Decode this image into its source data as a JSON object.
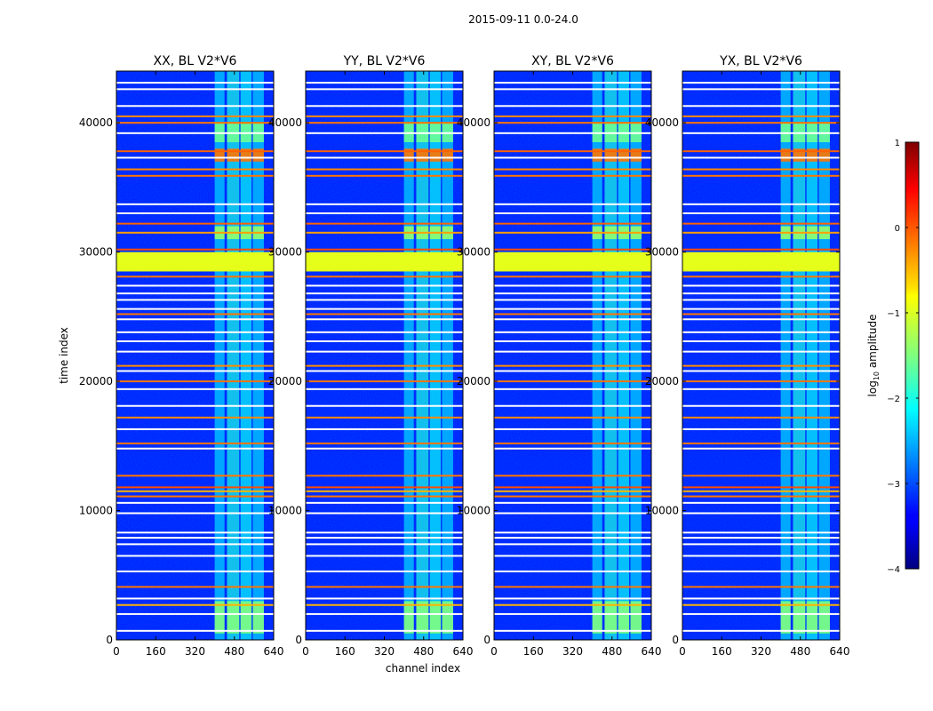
{
  "figure": {
    "suptitle": "2015-09-11 0.0-24.0",
    "xlabel": "channel index",
    "ylabel": "time index"
  },
  "chart_data": {
    "type": "heatmap",
    "colormap": "jet",
    "panels": [
      {
        "title": "XX, BL V2*V6",
        "show_y_ticklabels": true
      },
      {
        "title": "YY, BL V2*V6",
        "show_y_ticklabels": true
      },
      {
        "title": "XY, BL V2*V6",
        "show_y_ticklabels": true
      },
      {
        "title": "YX, BL V2*V6",
        "show_y_ticklabels": true
      }
    ],
    "xlim": [
      0,
      640
    ],
    "ylim": [
      0,
      44000
    ],
    "x_ticks": [
      0,
      160,
      320,
      480,
      640
    ],
    "x_ticklabels": [
      "0",
      "160",
      "320",
      "480",
      "640"
    ],
    "y_ticks": [
      0,
      10000,
      20000,
      30000,
      40000
    ],
    "y_ticklabels": [
      "0",
      "10000",
      "20000",
      "30000",
      "40000"
    ],
    "background_log_amplitude": -3.2,
    "channel_bands": [
      {
        "x0": 400,
        "x1": 440,
        "level": -2.3
      },
      {
        "x0": 450,
        "x1": 500,
        "level": -2.0
      },
      {
        "x0": 505,
        "x1": 550,
        "level": -2.1
      },
      {
        "x0": 555,
        "x1": 600,
        "level": -2.3
      }
    ],
    "hot_time_ranges": [
      {
        "y0": 500,
        "y1": 3000,
        "level": -1.5
      },
      {
        "y0": 31000,
        "y1": 32000,
        "level": -1.4
      },
      {
        "y0": 37000,
        "y1": 38000,
        "level": -0.2
      },
      {
        "y0": 38500,
        "y1": 40000,
        "level": -1.6
      }
    ],
    "flagged_range": {
      "y0": 28500,
      "y1": 30000,
      "level": -1.0
    },
    "flag_lines": [
      {
        "t": 700,
        "level": 1.0
      },
      {
        "t": 2000,
        "level": 1.0
      },
      {
        "t": 2700,
        "level": -0.5
      },
      {
        "t": 3200,
        "level": 1.0
      },
      {
        "t": 4100,
        "level": -0.2
      },
      {
        "t": 5300,
        "level": 1.0
      },
      {
        "t": 6500,
        "level": 1.0
      },
      {
        "t": 7400,
        "level": 1.0
      },
      {
        "t": 7900,
        "level": 1.0
      },
      {
        "t": 8300,
        "level": 1.0
      },
      {
        "t": 9800,
        "level": 1.0
      },
      {
        "t": 10600,
        "level": 1.0
      },
      {
        "t": 11100,
        "level": -0.2
      },
      {
        "t": 11500,
        "level": -0.5
      },
      {
        "t": 11800,
        "level": 0.0
      },
      {
        "t": 12700,
        "level": -0.2
      },
      {
        "t": 14800,
        "level": 1.0
      },
      {
        "t": 15200,
        "level": -0.2
      },
      {
        "t": 16300,
        "level": 1.0
      },
      {
        "t": 17200,
        "level": -0.3
      },
      {
        "t": 18100,
        "level": 1.0
      },
      {
        "t": 19400,
        "level": 1.0
      },
      {
        "t": 20000,
        "level": -0.2
      },
      {
        "t": 20800,
        "level": 1.0
      },
      {
        "t": 21200,
        "level": -0.3
      },
      {
        "t": 22300,
        "level": 1.0
      },
      {
        "t": 23100,
        "level": 1.0
      },
      {
        "t": 23800,
        "level": 1.0
      },
      {
        "t": 24800,
        "level": 1.0
      },
      {
        "t": 25200,
        "level": -0.2
      },
      {
        "t": 25600,
        "level": 1.0
      },
      {
        "t": 26300,
        "level": 1.0
      },
      {
        "t": 26800,
        "level": 1.0
      },
      {
        "t": 27400,
        "level": 1.0
      },
      {
        "t": 28100,
        "level": -0.2
      },
      {
        "t": 30200,
        "level": 0.0
      },
      {
        "t": 31500,
        "level": -0.4
      },
      {
        "t": 32200,
        "level": -0.1
      },
      {
        "t": 33000,
        "level": 1.0
      },
      {
        "t": 33700,
        "level": 1.0
      },
      {
        "t": 35900,
        "level": -0.2
      },
      {
        "t": 36400,
        "level": -0.3
      },
      {
        "t": 37300,
        "level": 1.0
      },
      {
        "t": 37800,
        "level": -0.1
      },
      {
        "t": 39200,
        "level": 1.0
      },
      {
        "t": 40000,
        "level": -0.2
      },
      {
        "t": 40500,
        "level": -0.3
      },
      {
        "t": 41300,
        "level": 1.0
      },
      {
        "t": 42600,
        "level": 1.0
      },
      {
        "t": 43100,
        "level": 1.0
      }
    ],
    "colorbar": {
      "label_prefix": "log",
      "label_subscript": "10",
      "label_suffix": " amplitude",
      "vmin": -4,
      "vmax": 1,
      "ticks": [
        1,
        0,
        -1,
        -2,
        -3,
        -4
      ],
      "ticklabels": [
        "1",
        "0",
        "−1",
        "−2",
        "−3",
        "−4"
      ]
    }
  }
}
